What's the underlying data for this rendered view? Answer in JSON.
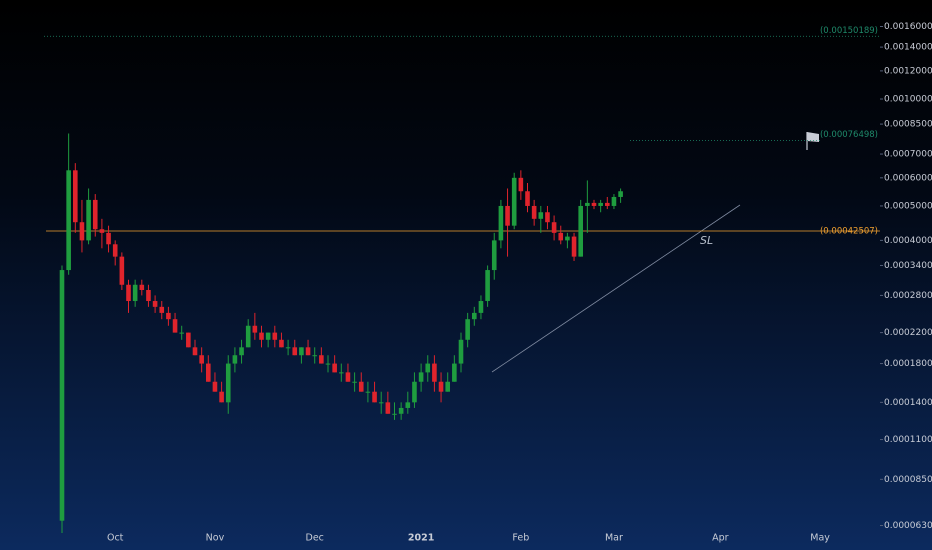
{
  "chart_data": {
    "type": "candlestick",
    "log_scale": true,
    "grid": false,
    "up_color": "#1f9d3f",
    "down_color": "#e0242c",
    "ylim": [
      6.2e-05,
      0.0019
    ],
    "yticks": [
      {
        "value": 0.0016,
        "label": "0.00160000"
      },
      {
        "value": 0.0014,
        "label": "0.00140000"
      },
      {
        "value": 0.0012,
        "label": "0.00120000"
      },
      {
        "value": 0.001,
        "label": "0.00100000"
      },
      {
        "value": 0.00085,
        "label": "0.00085000"
      },
      {
        "value": 0.0007,
        "label": "0.00070000"
      },
      {
        "value": 0.0006,
        "label": "0.00060000"
      },
      {
        "value": 0.0005,
        "label": "0.00050000"
      },
      {
        "value": 0.0004,
        "label": "0.00040000"
      },
      {
        "value": 0.00034,
        "label": "0.00034000"
      },
      {
        "value": 0.00028,
        "label": "0.00028000"
      },
      {
        "value": 0.00022,
        "label": "0.00022000"
      },
      {
        "value": 0.00018,
        "label": "0.00018000"
      },
      {
        "value": 0.00014,
        "label": "0.00014000"
      },
      {
        "value": 0.00011,
        "label": "0.00011000"
      },
      {
        "value": 8.5e-05,
        "label": "0.00008500"
      },
      {
        "value": 6.3e-05,
        "label": "0.00006300"
      }
    ],
    "categories": [
      null,
      null,
      null,
      null,
      null,
      null,
      null,
      null,
      "Oct",
      null,
      null,
      null,
      null,
      null,
      null,
      null,
      null,
      null,
      null,
      null,
      null,
      null,
      null,
      "Nov",
      null,
      null,
      null,
      null,
      null,
      null,
      null,
      null,
      null,
      null,
      null,
      null,
      null,
      null,
      "Dec",
      null,
      null,
      null,
      null,
      null,
      null,
      null,
      null,
      null,
      null,
      null,
      null,
      null,
      null,
      null,
      "2021",
      null,
      null,
      null,
      null,
      null,
      null,
      null,
      null,
      null,
      null,
      null,
      null,
      null,
      null,
      "Feb",
      null,
      null,
      null,
      null,
      null,
      null,
      null,
      null,
      null,
      null,
      null,
      null,
      null,
      "Mar",
      null,
      null,
      null,
      null,
      null,
      null,
      null,
      null,
      null,
      null,
      null,
      null,
      null,
      null,
      null,
      "Apr",
      null,
      null,
      null,
      null,
      null,
      null,
      null,
      null,
      null,
      null,
      null,
      null,
      null,
      null,
      "May",
      null,
      null,
      null,
      null,
      null
    ],
    "open": [
      6.5e-05,
      0.00033,
      0.00063,
      0.00045,
      0.0004,
      0.00052,
      0.00043,
      0.00042,
      0.00039,
      0.00036,
      0.0003,
      0.00027,
      0.0003,
      0.00029,
      0.00027,
      0.00026,
      0.00025,
      0.00024,
      0.00022,
      0.00022,
      0.0002,
      0.00019,
      0.00018,
      0.00016,
      0.00015,
      0.00014,
      0.00018,
      0.00019,
      0.0002,
      0.00023,
      0.00022,
      0.00021,
      0.00022,
      0.00021,
      0.0002,
      0.0002,
      0.00019,
      0.0002,
      0.00019,
      0.00019,
      0.00018,
      0.00018,
      0.00017,
      0.00017,
      0.00016,
      0.00016,
      0.00015,
      0.00015,
      0.00014,
      0.00014,
      0.00013,
      0.00013,
      0.000135,
      0.00014,
      0.00016,
      0.00017,
      0.00018,
      0.00016,
      0.00015,
      0.00016,
      0.00018,
      0.00021,
      0.00024,
      0.00025,
      0.00027,
      0.00033,
      0.0004,
      0.0005,
      0.00044,
      0.0006,
      0.00055,
      0.0005,
      0.00046,
      0.00048,
      0.00045,
      0.00042,
      0.0004,
      0.00041,
      0.00036,
      0.0005,
      0.00051,
      0.0005,
      0.00051,
      0.0005,
      0.00053,
      null,
      null,
      null,
      null,
      null,
      null,
      null,
      null,
      null,
      null,
      null,
      null,
      null,
      null,
      null,
      null,
      null,
      null,
      null,
      null,
      null,
      null,
      null,
      null,
      null,
      null,
      null,
      null,
      null,
      null,
      null,
      null,
      null,
      null,
      null
    ],
    "high": [
      0.00034,
      0.0008,
      0.00066,
      0.00052,
      0.00056,
      0.00054,
      0.00046,
      0.00044,
      0.0004,
      0.00037,
      0.00031,
      0.00031,
      0.00031,
      0.0003,
      0.00028,
      0.00027,
      0.00026,
      0.00025,
      0.00023,
      0.00022,
      0.00021,
      0.0002,
      0.00019,
      0.00017,
      0.00016,
      0.00019,
      0.0002,
      0.00021,
      0.00024,
      0.00025,
      0.00023,
      0.00022,
      0.00023,
      0.00022,
      0.00021,
      0.00021,
      0.0002,
      0.00021,
      0.0002,
      0.0002,
      0.00019,
      0.00019,
      0.00018,
      0.00018,
      0.00017,
      0.00017,
      0.00016,
      0.00016,
      0.00015,
      0.00015,
      0.00014,
      0.00014,
      0.00015,
      0.00017,
      0.00018,
      0.00019,
      0.00019,
      0.00017,
      0.00017,
      0.00019,
      0.00022,
      0.00025,
      0.00026,
      0.00028,
      0.00034,
      0.00042,
      0.00052,
      0.00056,
      0.00062,
      0.00063,
      0.00058,
      0.00052,
      0.0005,
      0.0005,
      0.00047,
      0.00044,
      0.00042,
      0.00042,
      0.00052,
      0.00059,
      0.00052,
      0.00052,
      0.00053,
      0.00054,
      0.00056,
      null,
      null,
      null,
      null,
      null,
      null,
      null,
      null,
      null,
      null,
      null,
      null,
      null,
      null,
      null,
      null,
      null,
      null,
      null,
      null,
      null,
      null,
      null,
      null,
      null,
      null,
      null,
      null,
      null,
      null,
      null,
      null,
      null,
      null,
      null
    ],
    "low": [
      6e-05,
      0.00032,
      0.00042,
      0.00037,
      0.00039,
      0.00041,
      0.00038,
      0.00037,
      0.00034,
      0.00029,
      0.00025,
      0.00026,
      0.00028,
      0.00026,
      0.00025,
      0.00024,
      0.00023,
      0.00022,
      0.00021,
      0.0002,
      0.00019,
      0.00017,
      0.00016,
      0.00015,
      0.00014,
      0.00013,
      0.00017,
      0.00018,
      0.0002,
      0.00021,
      0.0002,
      0.0002,
      0.0002,
      0.0002,
      0.00019,
      0.00019,
      0.00018,
      0.00019,
      0.00018,
      0.00018,
      0.00017,
      0.00017,
      0.00016,
      0.00016,
      0.00015,
      0.00015,
      0.00014,
      0.00014,
      0.00013,
      0.00013,
      0.000125,
      0.000125,
      0.00013,
      0.000135,
      0.00015,
      0.00016,
      0.00015,
      0.00014,
      0.00015,
      0.00016,
      0.00017,
      0.0002,
      0.00023,
      0.00024,
      0.00026,
      0.00031,
      0.00038,
      0.00036,
      0.00043,
      0.00052,
      0.00048,
      0.00044,
      0.00042,
      0.00043,
      0.0004,
      0.00039,
      0.00038,
      0.00035,
      0.00036,
      0.00042,
      0.00049,
      0.00048,
      0.00049,
      0.00049,
      0.00051,
      null,
      null,
      null,
      null,
      null,
      null,
      null,
      null,
      null,
      null,
      null,
      null,
      null,
      null,
      null,
      null,
      null,
      null,
      null,
      null,
      null,
      null,
      null,
      null,
      null,
      null,
      null,
      null,
      null,
      null,
      null,
      null,
      null,
      null,
      null
    ],
    "close": [
      0.00033,
      0.00063,
      0.00045,
      0.0004,
      0.00052,
      0.00043,
      0.00042,
      0.00039,
      0.00036,
      0.0003,
      0.00027,
      0.0003,
      0.00029,
      0.00027,
      0.00026,
      0.00025,
      0.00024,
      0.00022,
      0.00022,
      0.0002,
      0.00019,
      0.00018,
      0.00016,
      0.00015,
      0.00014,
      0.00018,
      0.00019,
      0.0002,
      0.00023,
      0.00022,
      0.00021,
      0.00022,
      0.00021,
      0.0002,
      0.0002,
      0.00019,
      0.0002,
      0.00019,
      0.00019,
      0.00018,
      0.00018,
      0.00017,
      0.00017,
      0.00016,
      0.00016,
      0.00015,
      0.00015,
      0.00014,
      0.00014,
      0.00013,
      0.00013,
      0.000135,
      0.00014,
      0.00016,
      0.00017,
      0.00018,
      0.00016,
      0.00015,
      0.00016,
      0.00018,
      0.00021,
      0.00024,
      0.00025,
      0.00027,
      0.00033,
      0.0004,
      0.0005,
      0.00044,
      0.0006,
      0.00055,
      0.0005,
      0.00046,
      0.00048,
      0.00045,
      0.00042,
      0.0004,
      0.00041,
      0.00036,
      0.0005,
      0.00051,
      0.0005,
      0.00051,
      0.0005,
      0.00053,
      0.00055,
      null,
      null,
      null,
      null,
      null,
      null,
      null,
      null,
      null,
      null,
      null,
      null,
      null,
      null,
      null,
      null,
      null,
      null,
      null,
      null,
      null,
      null,
      null,
      null,
      null,
      null,
      null,
      null,
      null,
      null,
      null,
      null,
      null,
      null,
      null
    ],
    "levels": [
      {
        "value": 0.00150189,
        "label": "(0.00150189)",
        "color": "#1f8a6a",
        "dashed": true
      },
      {
        "value": 0.00076498,
        "label": "(0.00076498)",
        "color": "#1f8a6a",
        "dashed": true
      },
      {
        "value": 0.00042507,
        "label": "(0.00042507)",
        "color": "#f0a030",
        "dashed": false
      }
    ],
    "annotation": "SL"
  }
}
